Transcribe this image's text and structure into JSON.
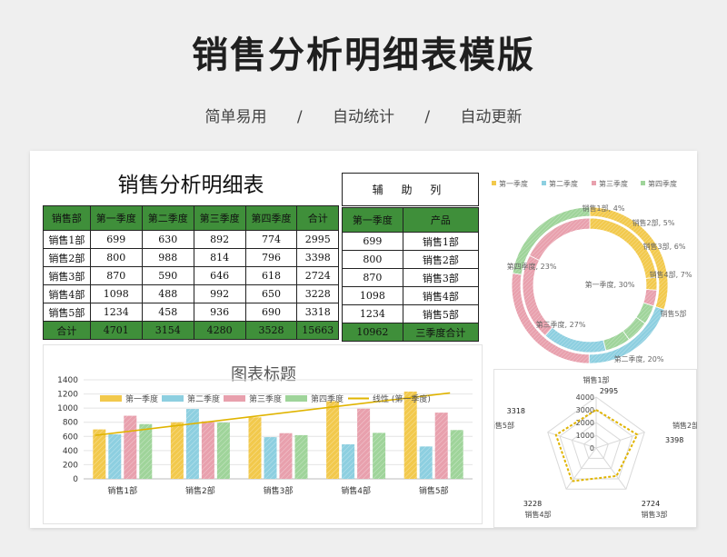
{
  "header": {
    "title": "销售分析明细表模版",
    "tags": [
      "简单易用",
      "自动统计",
      "自动更新"
    ],
    "separator": "/"
  },
  "sheet": {
    "title": "销售分析明细表",
    "table": {
      "headers": [
        "销售部",
        "第一季度",
        "第二季度",
        "第三季度",
        "第四季度",
        "合计"
      ],
      "rows": [
        [
          "销售1部",
          "699",
          "630",
          "892",
          "774",
          "2995"
        ],
        [
          "销售2部",
          "800",
          "988",
          "814",
          "796",
          "3398"
        ],
        [
          "销售3部",
          "870",
          "590",
          "646",
          "618",
          "2724"
        ],
        [
          "销售4部",
          "1098",
          "488",
          "992",
          "650",
          "3228"
        ],
        [
          "销售5部",
          "1234",
          "458",
          "936",
          "690",
          "3318"
        ]
      ],
      "total": [
        "合计",
        "4701",
        "3154",
        "4280",
        "3528",
        "15663"
      ]
    },
    "aux": {
      "title": "辅 助 列",
      "headers": [
        "第一季度",
        "产品"
      ],
      "rows": [
        [
          "699",
          "销售1部"
        ],
        [
          "800",
          "销售2部"
        ],
        [
          "870",
          "销售3部"
        ],
        [
          "1098",
          "销售4部"
        ],
        [
          "1234",
          "销售5部"
        ]
      ],
      "total": [
        "10962",
        "三季度合计"
      ]
    }
  },
  "colors": {
    "q1": "#f2c94c",
    "q2": "#8dcfe0",
    "q3": "#e8a0ad",
    "q4": "#9fd49a",
    "trend": "#e0b400",
    "header_green": "#3f8f3a"
  },
  "chart_data": [
    {
      "type": "bar",
      "title": "图表标题",
      "categories": [
        "销售1部",
        "销售2部",
        "销售3部",
        "销售4部",
        "销售5部"
      ],
      "series": [
        {
          "name": "第一季度",
          "values": [
            699,
            800,
            870,
            1098,
            1234
          ]
        },
        {
          "name": "第二季度",
          "values": [
            630,
            988,
            590,
            488,
            458
          ]
        },
        {
          "name": "第三季度",
          "values": [
            892,
            814,
            646,
            992,
            936
          ]
        },
        {
          "name": "第四季度",
          "values": [
            774,
            796,
            618,
            650,
            690
          ]
        }
      ],
      "trendline": {
        "name": "线性 (第一季度)",
        "values": [
          655,
          790,
          925,
          1060,
          1195
        ]
      },
      "ylim": [
        0,
        1400
      ],
      "yticks": [
        0,
        200,
        400,
        600,
        800,
        1000,
        1200,
        1400
      ],
      "legend": "top"
    },
    {
      "type": "pie",
      "variant": "doughnut",
      "legend_entries": [
        "第一季度",
        "第二季度",
        "第三季度",
        "第四季度"
      ],
      "ring_values": [
        4701,
        3154,
        4280,
        3528
      ],
      "slice_order": [
        "第一季度",
        "销售1部",
        "销售2部",
        "销售3部",
        "销售4部",
        "销售5部",
        "第二季度",
        "第三季度",
        "第四季度"
      ],
      "slice_values": [
        30,
        4,
        5,
        6,
        7,
        8,
        20,
        27,
        23
      ],
      "labels": [
        {
          "text": "销售1部, 4%"
        },
        {
          "text": "销售2部, 5%"
        },
        {
          "text": "销售3部, 6%"
        },
        {
          "text": "销售4部, 7%"
        },
        {
          "text": "销售5部"
        },
        {
          "text": "第二季度, 20%"
        },
        {
          "text": "第三季度, 27%"
        },
        {
          "text": "第四季度, 23%"
        },
        {
          "text": "第一季度, 30%"
        }
      ],
      "legend": "top"
    },
    {
      "type": "radar",
      "categories": [
        "销售1部",
        "销售2部",
        "销售3部",
        "销售4部",
        "销售5部"
      ],
      "values": [
        2995,
        3398,
        2724,
        3228,
        3318
      ],
      "value_labels": [
        "2995",
        "3398",
        "2724",
        "3228",
        "3318"
      ],
      "rlim": [
        0,
        4000
      ],
      "rticks": [
        "0",
        "1000",
        "2000",
        "3000",
        "4000"
      ]
    }
  ]
}
